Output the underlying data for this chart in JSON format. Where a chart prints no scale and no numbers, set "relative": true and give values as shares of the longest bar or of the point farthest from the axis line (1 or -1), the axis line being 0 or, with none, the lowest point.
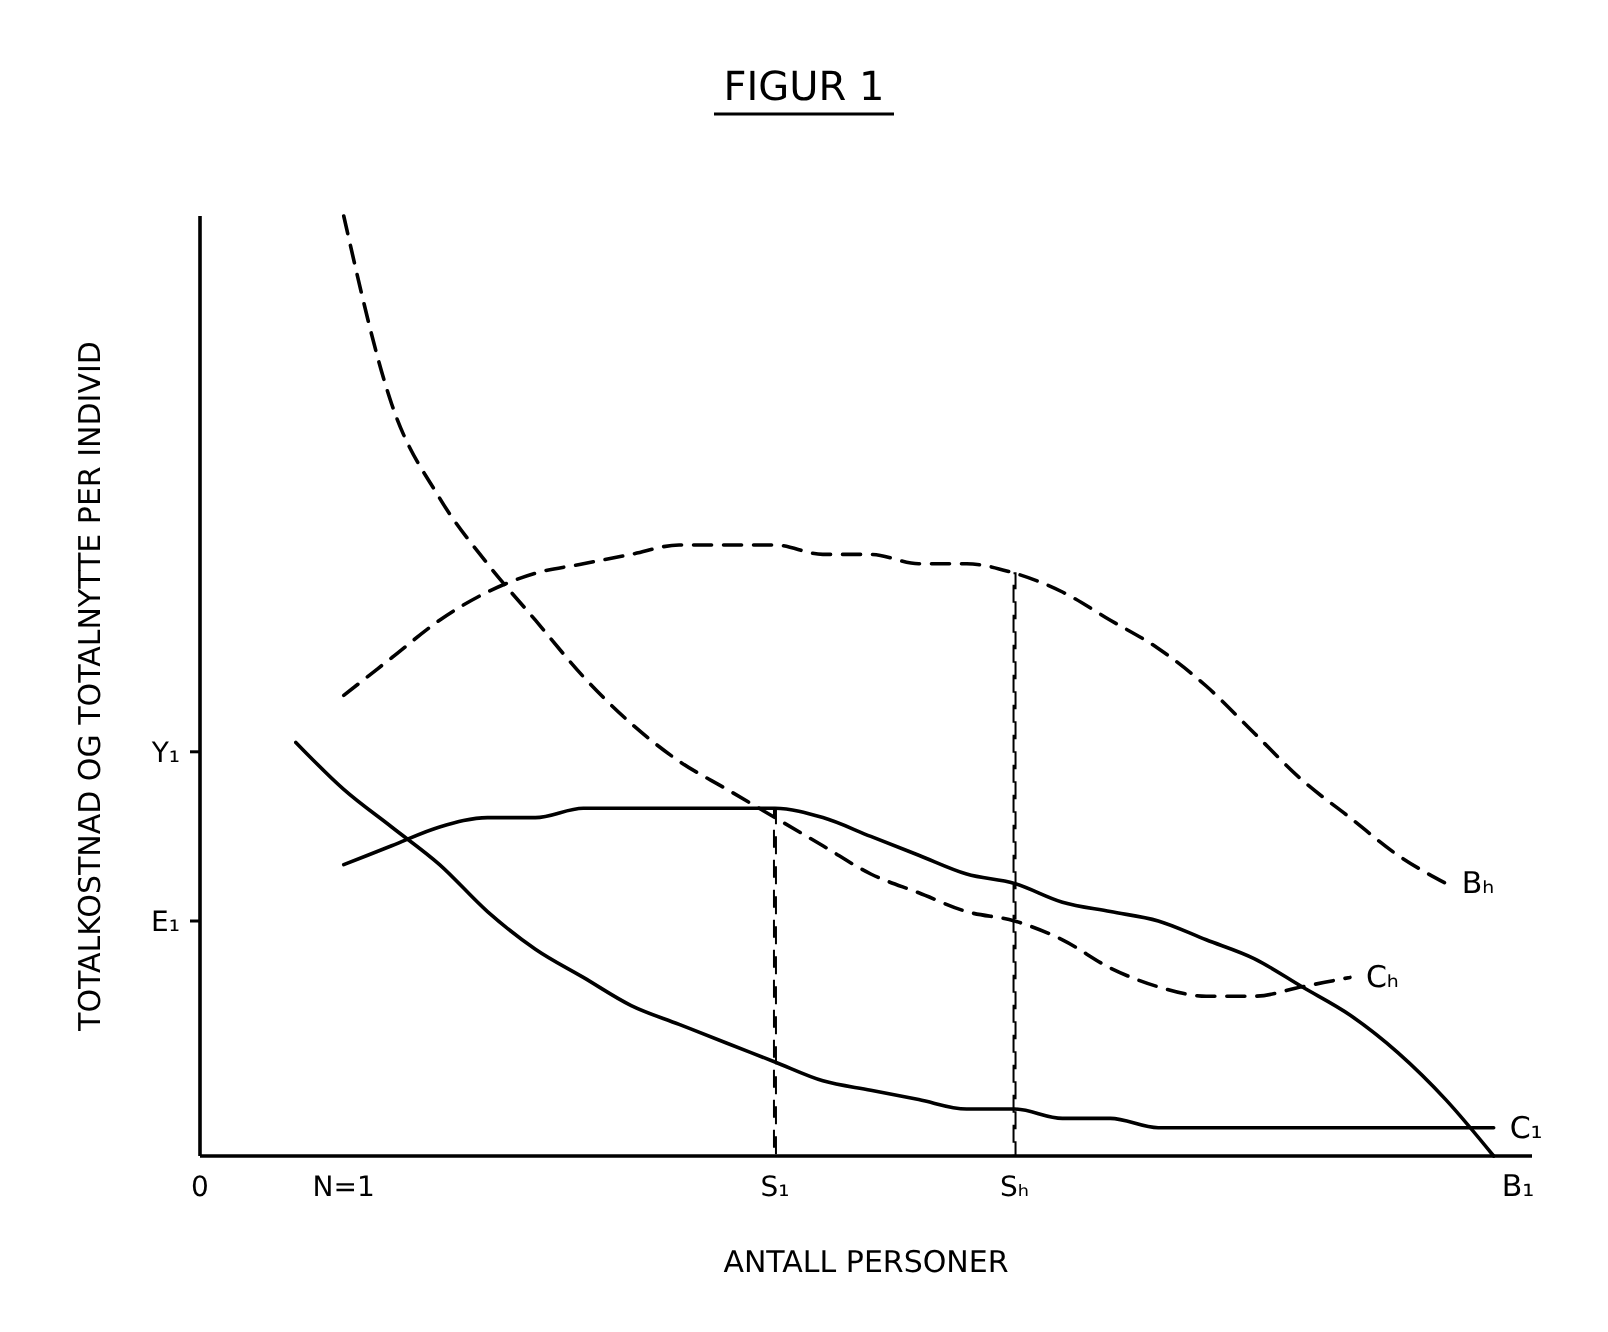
{
  "chart_data": {
    "type": "line",
    "title": "FIGUR 1",
    "xlabel": "ANTALL PERSONER",
    "ylabel": "TOTALKOSTNAD OG TOTALNYTTE PER INDIVID",
    "relative": true,
    "categories": [
      "0",
      null,
      null,
      "N=1",
      null,
      null,
      null,
      null,
      null,
      null,
      null,
      null,
      "S₁",
      null,
      null,
      null,
      null,
      "Sₕ",
      null,
      null,
      null,
      null,
      null,
      null,
      null,
      null,
      null,
      null
    ],
    "ref_lines": [
      {
        "axis": "y",
        "value": 0.43,
        "label": "Y₁"
      },
      {
        "axis": "y",
        "value": 0.25,
        "label": "E₁"
      }
    ],
    "grid": false,
    "legend": false,
    "marker": "none",
    "series": [
      {
        "name": "Bₕ",
        "color": "#000000",
        "line_style": "dashed",
        "values": [
          null,
          null,
          null,
          0.49,
          0.53,
          0.57,
          0.6,
          0.62,
          0.63,
          0.64,
          0.65,
          0.65,
          0.65,
          0.64,
          0.64,
          0.63,
          0.63,
          0.62,
          0.6,
          0.57,
          0.54,
          0.5,
          0.45,
          0.4,
          0.36,
          0.32,
          0.29,
          null
        ]
      },
      {
        "name": "Cₕ",
        "color": "#000000",
        "line_style": "dashed",
        "values": [
          null,
          null,
          null,
          1,
          0.8,
          0.7,
          0.63,
          0.57,
          0.51,
          0.46,
          0.42,
          0.39,
          0.36,
          0.33,
          0.3,
          0.28,
          0.26,
          0.25,
          0.23,
          0.2,
          0.18,
          0.17,
          0.17,
          0.18,
          0.19,
          null,
          null,
          null
        ]
      },
      {
        "name": "B₁",
        "color": "#000000",
        "line_style": "solid",
        "values": [
          null,
          null,
          null,
          0.31,
          0.33,
          0.35,
          0.36,
          0.36,
          0.37,
          0.37,
          0.37,
          0.37,
          0.37,
          0.36,
          0.34,
          0.32,
          0.3,
          0.29,
          0.27,
          0.26,
          0.25,
          0.23,
          0.21,
          0.18,
          0.15,
          0.11,
          0.06,
          0
        ]
      },
      {
        "name": "C₁",
        "color": "#000000",
        "line_style": "solid",
        "values": [
          null,
          null,
          0.44,
          0.39,
          0.35,
          0.31,
          0.26,
          0.22,
          0.19,
          0.16,
          0.14,
          0.12,
          0.1,
          0.08,
          0.07,
          0.06,
          0.05,
          0.05,
          0.04,
          0.04,
          0.03,
          0.03,
          0.03,
          0.03,
          0.03,
          0.03,
          0.03,
          0.03
        ]
      },
      {
        "type": "bar",
        "color": "#000000",
        "line_style": "dashed",
        "values": [
          null,
          null,
          null,
          null,
          null,
          null,
          null,
          null,
          null,
          null,
          null,
          null,
          0.37,
          null,
          null,
          null,
          null,
          0.62,
          null,
          null,
          null,
          null,
          null,
          null,
          null,
          null,
          null,
          null
        ]
      }
    ]
  }
}
